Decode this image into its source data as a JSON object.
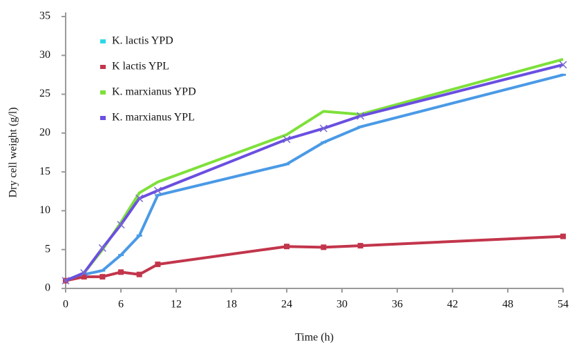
{
  "chart_data": {
    "type": "line",
    "x_label": "Time (h)",
    "y_label": "Dry cell weight (g/l)",
    "x": [
      0,
      2,
      4,
      6,
      8,
      10,
      24,
      28,
      32,
      54
    ],
    "series": [
      {
        "name": "K. lactis YPD",
        "color": "#4a9ae6",
        "legend_color": "#2ed8e8",
        "marker": "dash",
        "values": [
          1,
          1.8,
          2.3,
          4.3,
          6.8,
          12,
          16,
          18.8,
          20.8,
          27.5
        ]
      },
      {
        "name": "K lactis YPL",
        "color": "#c2354b",
        "legend_color": "#c2354b",
        "marker": "square",
        "values": [
          1,
          1.5,
          1.5,
          2.1,
          1.8,
          3.1,
          5.4,
          5.3,
          5.5,
          6.7
        ]
      },
      {
        "name": "K. marxianus YPD",
        "color": "#7ee03a",
        "legend_color": "#7ee03a",
        "marker": "none",
        "values": [
          1,
          2,
          5,
          8.5,
          12.3,
          13.7,
          19.8,
          22.8,
          22.4,
          29.5
        ]
      },
      {
        "name": "K. marxianus YPL",
        "color": "#6a4fe0",
        "legend_color": "#6a4fe0",
        "marker": "x",
        "values": [
          1,
          2,
          5.2,
          8.2,
          11.6,
          12.6,
          19.2,
          20.6,
          22.2,
          28.8
        ]
      }
    ],
    "xlim": [
      0,
      54
    ],
    "xticks": [
      0,
      6,
      12,
      18,
      24,
      30,
      36,
      42,
      48,
      54
    ],
    "ylim": [
      0,
      35
    ],
    "yticks": [
      0,
      5,
      10,
      15,
      20,
      25,
      30,
      35
    ],
    "grid": false,
    "legend": "upper left"
  }
}
